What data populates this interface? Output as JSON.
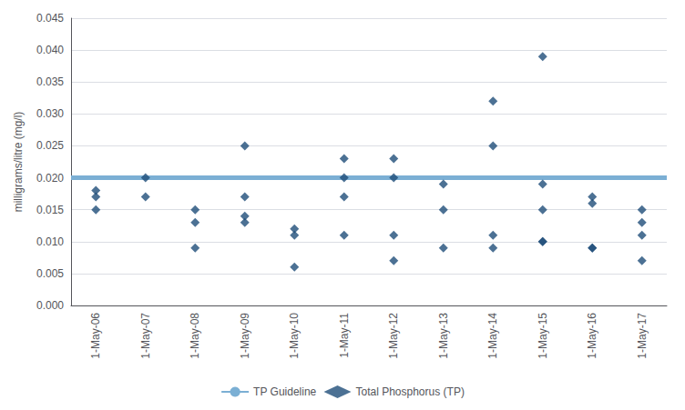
{
  "chart_data": {
    "type": "scatter",
    "ylabel": "milligrams/litre (mg/l)",
    "categories": [
      "1-May-06",
      "1-May-07",
      "1-May-08",
      "1-May-09",
      "1-May-10",
      "1-May-11",
      "1-May-12",
      "1-May-13",
      "1-May-14",
      "1-May-15",
      "1-May-16",
      "1-May-17"
    ],
    "series": [
      {
        "name": "TP Guideline",
        "type": "hline",
        "color": "#7bafd4",
        "y": 0.02
      },
      {
        "name": "Total Phosphorus (TP)",
        "type": "scatter",
        "color": "#1f4e79",
        "marker": "diamond",
        "x": [
          "1-May-06",
          "1-May-06",
          "1-May-06",
          "1-May-07",
          "1-May-07",
          "1-May-08",
          "1-May-08",
          "1-May-08",
          "1-May-09",
          "1-May-09",
          "1-May-09",
          "1-May-09",
          "1-May-10",
          "1-May-10",
          "1-May-10",
          "1-May-11",
          "1-May-11",
          "1-May-11",
          "1-May-11",
          "1-May-12",
          "1-May-12",
          "1-May-12",
          "1-May-12",
          "1-May-13",
          "1-May-13",
          "1-May-13",
          "1-May-14",
          "1-May-14",
          "1-May-14",
          "1-May-14",
          "1-May-15",
          "1-May-15",
          "1-May-15",
          "1-May-15",
          "1-May-15",
          "1-May-16",
          "1-May-16",
          "1-May-16",
          "1-May-16",
          "1-May-17",
          "1-May-17",
          "1-May-17",
          "1-May-17"
        ],
        "values": [
          0.018,
          0.017,
          0.015,
          0.017,
          0.02,
          0.009,
          0.013,
          0.015,
          0.014,
          0.013,
          0.017,
          0.025,
          0.006,
          0.011,
          0.012,
          0.011,
          0.017,
          0.02,
          0.023,
          0.007,
          0.011,
          0.02,
          0.023,
          0.009,
          0.015,
          0.019,
          0.009,
          0.011,
          0.025,
          0.032,
          0.039,
          0.01,
          0.01,
          0.015,
          0.019,
          0.009,
          0.009,
          0.016,
          0.017,
          0.007,
          0.011,
          0.013,
          0.015
        ]
      }
    ],
    "ylim": [
      0.0,
      0.045
    ],
    "yticks": [
      {
        "value": 0.0,
        "label": "0.000"
      },
      {
        "value": 0.005,
        "label": "0.005"
      },
      {
        "value": 0.01,
        "label": "0.010"
      },
      {
        "value": 0.015,
        "label": "0.015"
      },
      {
        "value": 0.02,
        "label": "0.020"
      },
      {
        "value": 0.025,
        "label": "0.025"
      },
      {
        "value": 0.03,
        "label": "0.030"
      },
      {
        "value": 0.035,
        "label": "0.035"
      },
      {
        "value": 0.04,
        "label": "0.040"
      },
      {
        "value": 0.045,
        "label": "0.045"
      }
    ],
    "grid": true,
    "legend": "bottom"
  }
}
